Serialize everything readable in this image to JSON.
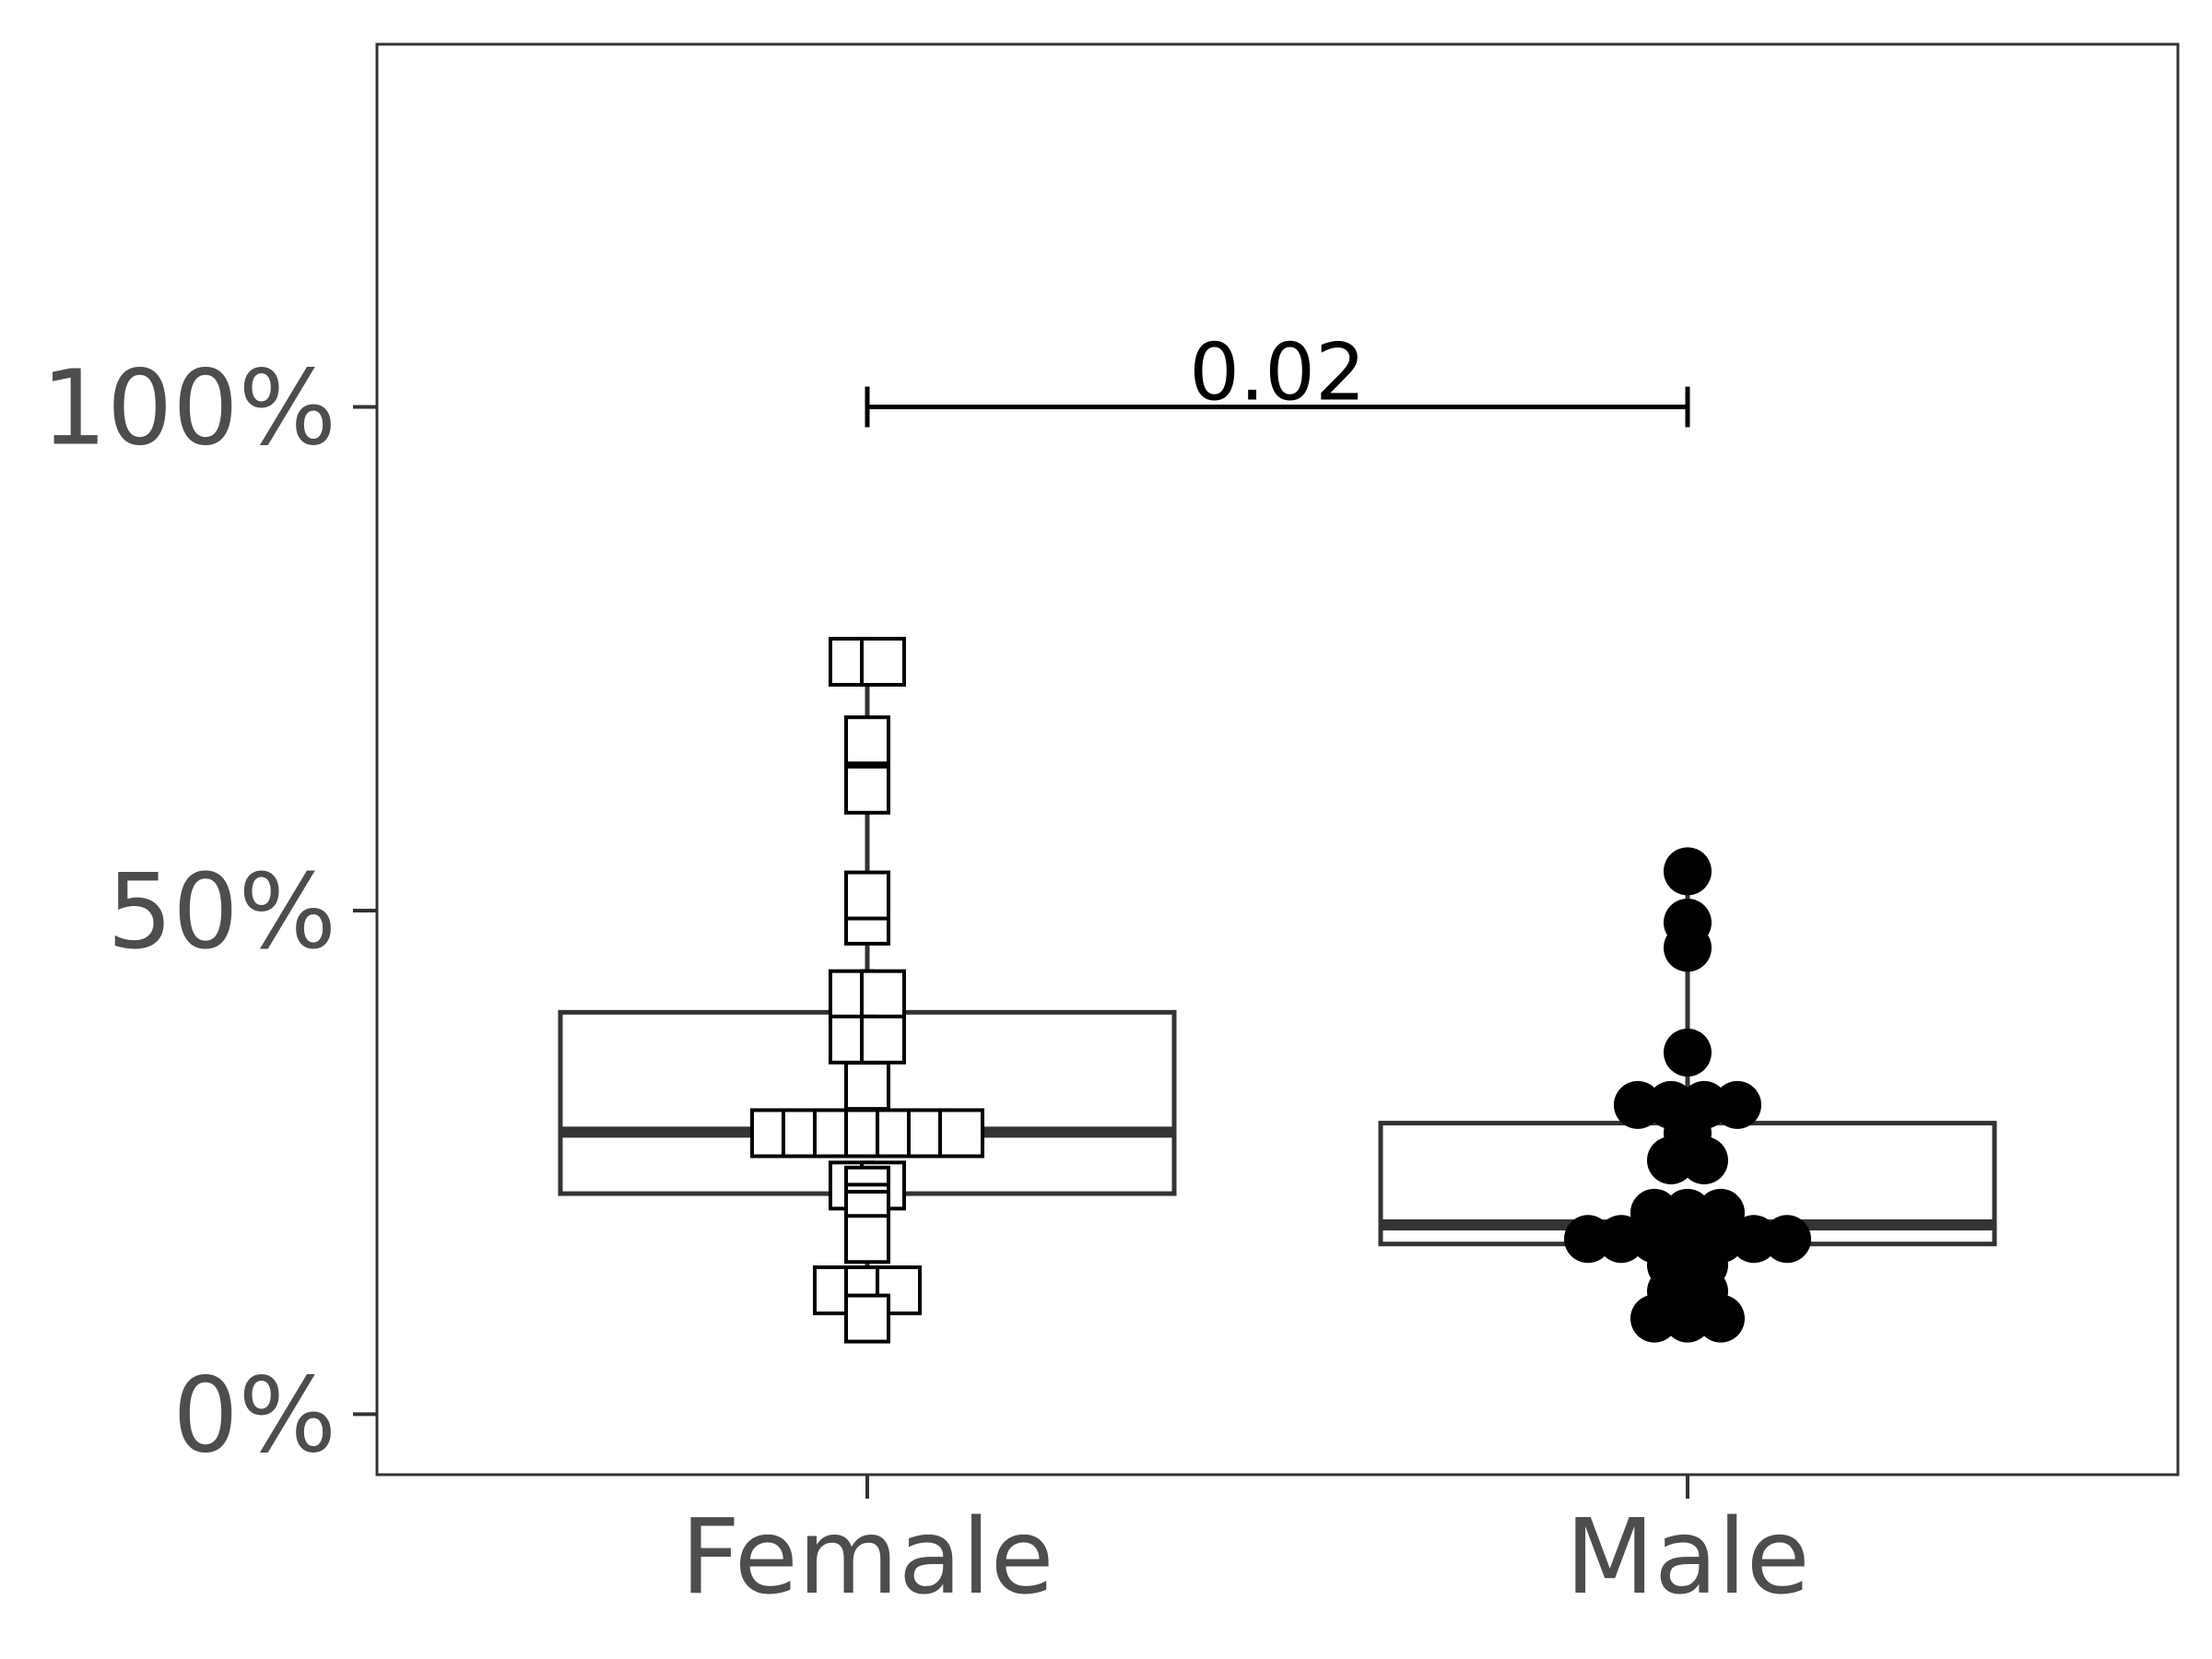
{
  "chart_data": {
    "type": "box",
    "categories": [
      "Female",
      "Male"
    ],
    "y_tick_labels": [
      "0%",
      "50%",
      "100%"
    ],
    "y_ticks": [
      0,
      50,
      100
    ],
    "ylim": [
      -6,
      136
    ],
    "grid": false,
    "legend": "none",
    "boxes": [
      {
        "category": "Female",
        "q1": 21.9,
        "median": 28.0,
        "q3": 39.9,
        "whisker_low": 9.5,
        "whisker_high": 74.7
      },
      {
        "category": "Male",
        "q1": 16.9,
        "median": 18.8,
        "q3": 28.9,
        "whisker_low": 9.5,
        "whisker_high": 53.9
      }
    ],
    "points": [
      {
        "category": "Female",
        "marker": "square-open",
        "values": [
          74.7,
          74.7,
          66.9,
          62.0,
          51.5,
          49.0,
          41.7,
          41.7,
          37.2,
          37.2,
          32.6,
          27.9,
          27.9,
          27.9,
          27.9,
          27.9,
          27.9,
          27.9,
          22.7,
          22.7,
          22.2,
          20.5,
          19.8,
          17.4,
          12.3,
          12.3,
          12.3,
          9.5
        ]
      },
      {
        "category": "Male",
        "marker": "circle-filled",
        "values": [
          53.9,
          48.8,
          46.3,
          35.9,
          30.7,
          30.7,
          30.7,
          30.7,
          27.9,
          25.2,
          25.2,
          20.0,
          20.0,
          20.0,
          18.7,
          18.7,
          17.4,
          17.4,
          17.4,
          17.4,
          17.4,
          17.4,
          17.4,
          14.8,
          14.8,
          12.2,
          12.2,
          9.5,
          9.5,
          9.5
        ]
      }
    ],
    "significance": {
      "from": "Female",
      "to": "Male",
      "y": 100,
      "label": "0.02"
    },
    "colors": {
      "box_outline": "#333333",
      "panel_border": "#333333",
      "tick_label": "#4d4d4d",
      "marker": "#000000"
    }
  }
}
